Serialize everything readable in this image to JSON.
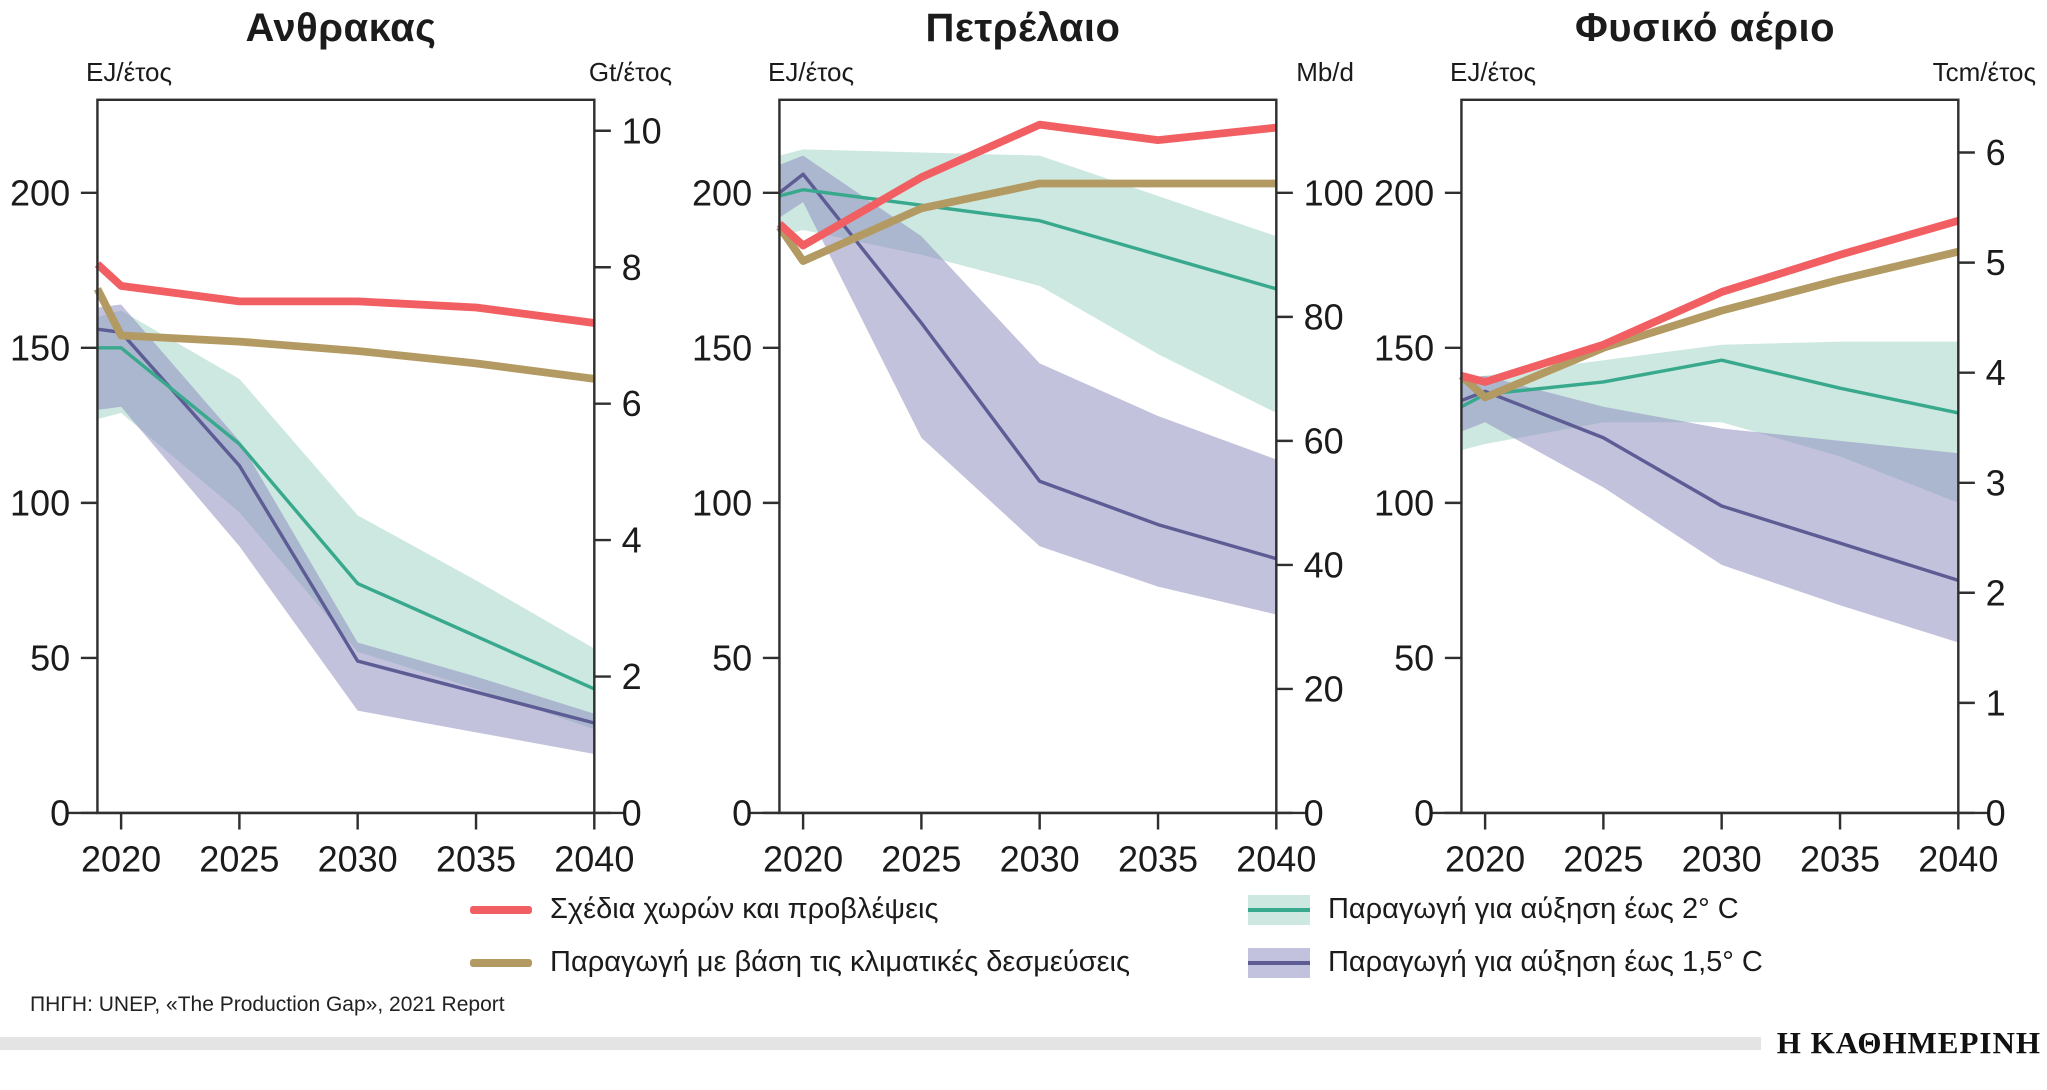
{
  "footer": {
    "source": "ΠΗΓΗ: UNEP, «The Production Gap», 2021 Report",
    "logo": "Η ΚΑΘΗΜΕΡΙΝΗ"
  },
  "legend": {
    "items": [
      {
        "label": "Σχέδια χωρών και προβλέψεις",
        "type": "line",
        "color": "#f25f63"
      },
      {
        "label": "Παραγωγή με βάση τις κλιματικές δεσμεύσεις",
        "type": "line",
        "color": "#b39a62"
      },
      {
        "label": "Παραγωγή για αύξηση έως 2° C",
        "type": "band",
        "color": "#39a98e",
        "band_color": "#cde8e0"
      },
      {
        "label": "Παραγωγή για αύξηση έως 1,5° C",
        "type": "band",
        "color": "#5d5c94",
        "band_color": "#c3c2de"
      }
    ]
  },
  "chart_data": [
    {
      "type": "line",
      "title": "Ανθρακας",
      "left_unit": "EJ/έτος",
      "right_unit": "Gt/έτος",
      "x": [
        2019,
        2020,
        2025,
        2030,
        2035,
        2040
      ],
      "x_ticks": [
        2020,
        2025,
        2030,
        2035,
        2040
      ],
      "left_ticks": [
        0,
        50,
        100,
        150,
        200
      ],
      "left_max": 230,
      "right_ticks": [
        0,
        2,
        4,
        6,
        8,
        10
      ],
      "ej_per_right_unit": 22,
      "series": [
        {
          "key": "plans",
          "name": "Σχέδια χωρών και προβλέψεις",
          "color": "#f25f63",
          "width": 8,
          "values": [
            177,
            170,
            165,
            165,
            163,
            158
          ]
        },
        {
          "key": "pledges",
          "name": "Παραγωγή με βάση τις κλιματικές δεσμεύσεις",
          "color": "#b39a62",
          "width": 8,
          "values": [
            169,
            154,
            152,
            149,
            145,
            140
          ]
        },
        {
          "key": "two-deg",
          "name": "Παραγωγή για αύξηση έως 2° C",
          "color": "#39a98e",
          "width": 3.5,
          "band_color": "#cde8e0",
          "band_opacity": 1,
          "values": [
            150,
            150,
            119,
            74,
            57,
            40
          ],
          "band_upper": [
            160,
            162,
            140,
            96,
            75,
            53
          ],
          "band_lower": [
            127,
            129,
            97,
            52,
            40,
            27
          ]
        },
        {
          "key": "one-five-deg",
          "name": "Παραγωγή για αύξηση έως 1,5° C",
          "color": "#5d5c94",
          "width": 3.5,
          "band_color": "#8886bb",
          "band_opacity": 0.5,
          "values": [
            156,
            155,
            112,
            49,
            39,
            29
          ],
          "band_upper": [
            163,
            164,
            120,
            55,
            44,
            32
          ],
          "band_lower": [
            130,
            131,
            86,
            33,
            26,
            19
          ]
        }
      ]
    },
    {
      "type": "line",
      "title": "Πετρέλαιο",
      "left_unit": "EJ/έτος",
      "right_unit": "Mb/d",
      "x": [
        2019,
        2020,
        2025,
        2030,
        2035,
        2040
      ],
      "x_ticks": [
        2020,
        2025,
        2030,
        2035,
        2040
      ],
      "left_ticks": [
        0,
        50,
        100,
        150,
        200
      ],
      "left_max": 230,
      "right_ticks": [
        0,
        20,
        40,
        60,
        80,
        100
      ],
      "ej_per_right_unit": 2,
      "series": [
        {
          "key": "plans",
          "name": "Σχέδια χωρών και προβλέψεις",
          "color": "#f25f63",
          "width": 8,
          "values": [
            190,
            183,
            205,
            222,
            217,
            221
          ]
        },
        {
          "key": "pledges",
          "name": "Παραγωγή με βάση τις κλιματικές δεσμεύσεις",
          "color": "#b39a62",
          "width": 8,
          "values": [
            189,
            178,
            195,
            203,
            203,
            203
          ]
        },
        {
          "key": "two-deg",
          "name": "Παραγωγή για αύξηση έως 2° C",
          "color": "#39a98e",
          "width": 3.5,
          "band_color": "#cde8e0",
          "band_opacity": 1,
          "values": [
            199,
            201,
            196,
            191,
            180,
            169
          ],
          "band_upper": [
            212,
            214,
            213,
            212,
            199,
            186
          ],
          "band_lower": [
            186,
            188,
            180,
            170,
            148,
            129
          ]
        },
        {
          "key": "one-five-deg",
          "name": "Παραγωγή για αύξηση έως 1,5° C",
          "color": "#5d5c94",
          "width": 3.5,
          "band_color": "#8886bb",
          "band_opacity": 0.5,
          "values": [
            200,
            206,
            158,
            107,
            93,
            82
          ],
          "band_upper": [
            209,
            212,
            186,
            145,
            128,
            114
          ],
          "band_lower": [
            192,
            197,
            121,
            86,
            73,
            64
          ]
        }
      ]
    },
    {
      "type": "line",
      "title": "Φυσικό αέριο",
      "left_unit": "EJ/έτος",
      "right_unit": "Tcm/έτος",
      "x": [
        2019,
        2020,
        2025,
        2030,
        2035,
        2040
      ],
      "x_ticks": [
        2020,
        2025,
        2030,
        2035,
        2040
      ],
      "left_ticks": [
        0,
        50,
        100,
        150,
        200
      ],
      "left_max": 230,
      "right_ticks": [
        0,
        1,
        2,
        3,
        4,
        5,
        6
      ],
      "ej_per_right_unit": 35.5,
      "series": [
        {
          "key": "plans",
          "name": "Σχέδια χωρών και προβλέψεις",
          "color": "#f25f63",
          "width": 8,
          "values": [
            141,
            139,
            151,
            168,
            180,
            191
          ]
        },
        {
          "key": "pledges",
          "name": "Παραγωγή με βάση τις κλιματικές δεσμεύσεις",
          "color": "#b39a62",
          "width": 8,
          "values": [
            141,
            134,
            150,
            162,
            172,
            181
          ]
        },
        {
          "key": "two-deg",
          "name": "Παραγωγή για αύξηση έως 2° C",
          "color": "#39a98e",
          "width": 3.5,
          "band_color": "#cde8e0",
          "band_opacity": 1,
          "values": [
            131,
            135,
            139,
            146,
            137,
            129
          ],
          "band_upper": [
            140,
            141,
            146,
            151,
            152,
            152
          ],
          "band_lower": [
            117,
            119,
            126,
            126,
            115,
            100
          ]
        },
        {
          "key": "one-five-deg",
          "name": "Παραγωγή για αύξηση έως 1,5° C",
          "color": "#5d5c94",
          "width": 3.5,
          "band_color": "#8886bb",
          "band_opacity": 0.5,
          "values": [
            133,
            136,
            121,
            99,
            87,
            75
          ],
          "band_upper": [
            140,
            141,
            131,
            124,
            120,
            116
          ],
          "band_lower": [
            123,
            126,
            105,
            80,
            67,
            55
          ]
        }
      ]
    }
  ]
}
